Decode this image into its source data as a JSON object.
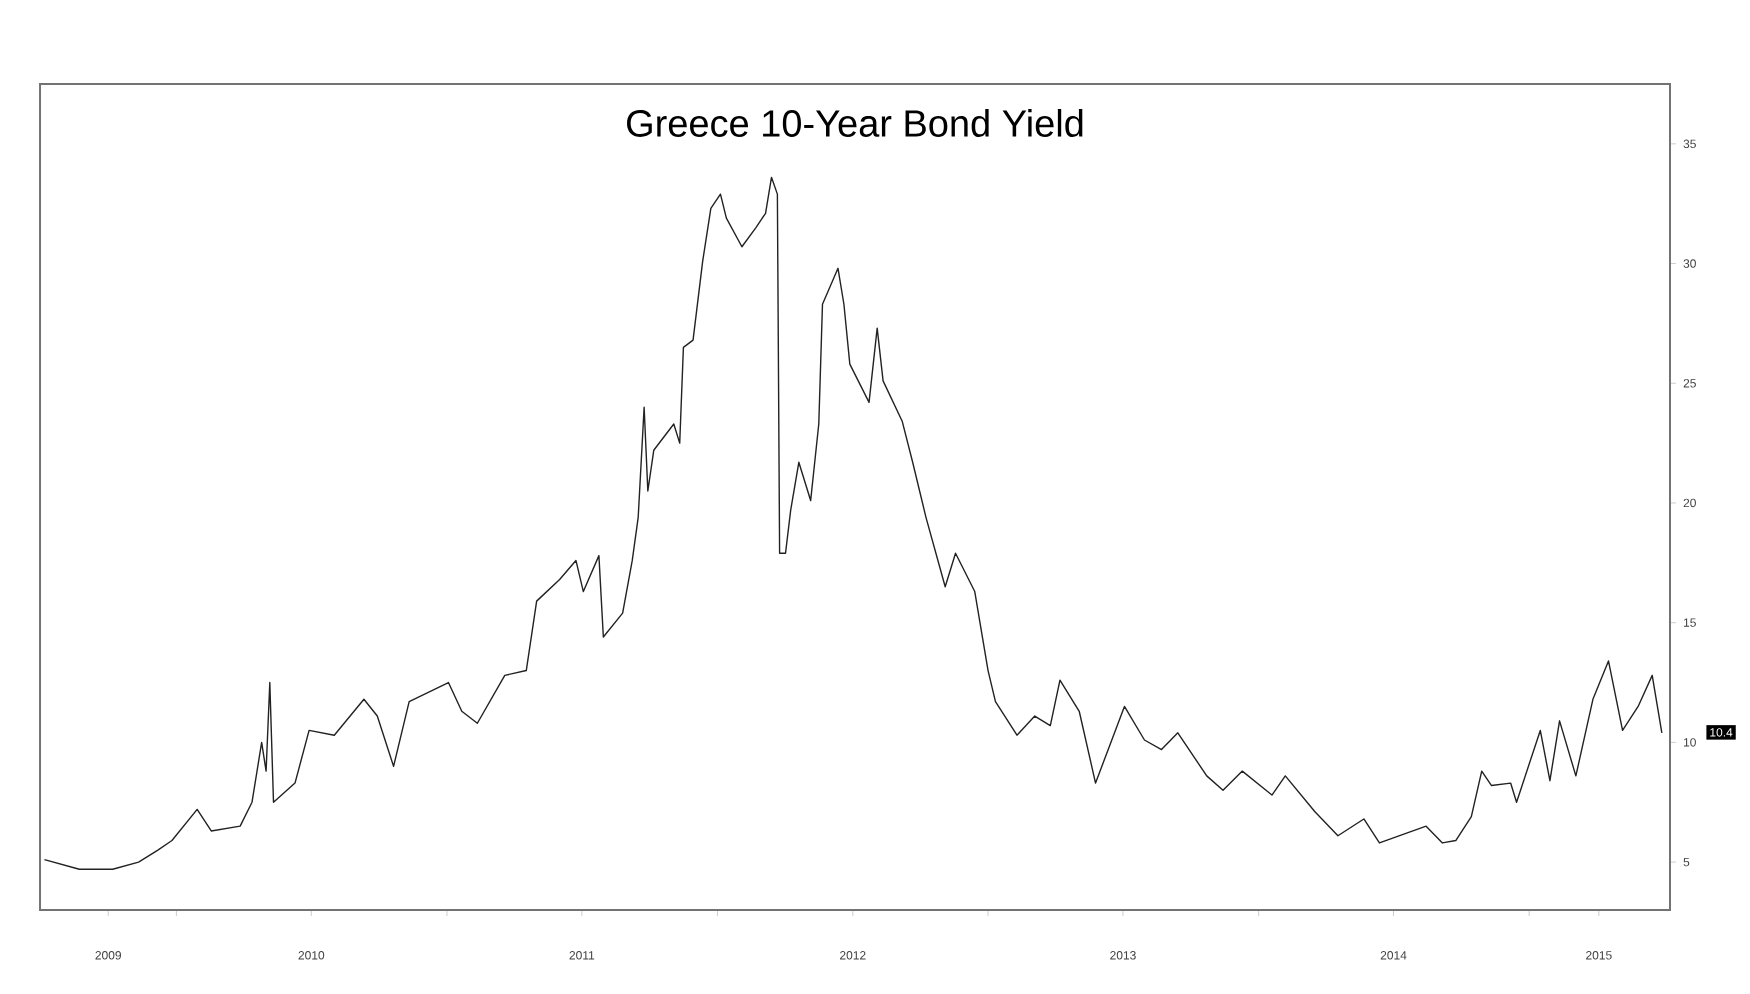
{
  "chart_data": {
    "type": "line",
    "title": "Greece 10-Year Bond Yield",
    "x": [
      "2009-07-07",
      "2009-08-23",
      "2009-10-07",
      "2009-11-11",
      "2009-12-07",
      "2009-12-26",
      "2010-01-29",
      "2010-02-17",
      "2010-03-28",
      "2010-04-13",
      "2010-04-26",
      "2010-05-02",
      "2010-05-07",
      "2010-05-12",
      "2010-06-10",
      "2010-06-29",
      "2010-08-02",
      "2010-09-11",
      "2010-09-29",
      "2010-10-21",
      "2010-11-11",
      "2011-01-03",
      "2011-01-21",
      "2011-02-11",
      "2011-03-20",
      "2011-04-18",
      "2011-05-02",
      "2011-06-02",
      "2011-06-24",
      "2011-07-04",
      "2011-07-25",
      "2011-07-31",
      "2011-08-26",
      "2011-09-08",
      "2011-09-16",
      "2011-09-24",
      "2011-09-29",
      "2011-10-07",
      "2011-11-03",
      "2011-11-11",
      "2011-11-16",
      "2011-11-29",
      "2011-12-12",
      "2011-12-23",
      "2012-01-05",
      "2012-01-13",
      "2012-02-03",
      "2012-02-22",
      "2012-03-06",
      "2012-03-14",
      "2012-03-22",
      "2012-03-25",
      "2012-04-02",
      "2012-04-09",
      "2012-04-20",
      "2012-05-06",
      "2012-05-17",
      "2012-05-22",
      "2012-06-12",
      "2012-06-20",
      "2012-06-28",
      "2012-07-24",
      "2012-08-04",
      "2012-08-12",
      "2012-09-07",
      "2012-09-21",
      "2012-10-09",
      "2012-11-04",
      "2012-11-18",
      "2012-12-14",
      "2013-01-01",
      "2013-01-11",
      "2013-02-09",
      "2013-03-05",
      "2013-03-26",
      "2013-04-08",
      "2013-05-04",
      "2013-05-26",
      "2013-07-04",
      "2013-07-31",
      "2013-08-23",
      "2013-09-14",
      "2013-10-23",
      "2013-11-14",
      "2013-12-10",
      "2014-01-19",
      "2014-02-06",
      "2014-03-18",
      "2014-04-18",
      "2014-05-23",
      "2014-06-13",
      "2014-08-15",
      "2014-09-06",
      "2014-09-24",
      "2014-10-15",
      "2014-10-29",
      "2014-11-11",
      "2014-12-07",
      "2014-12-15",
      "2015-01-16",
      "2015-01-29",
      "2015-02-11",
      "2015-03-05",
      "2015-03-28",
      "2015-04-18",
      "2015-05-07",
      "2015-05-28",
      "2015-06-16",
      "2015-06-29"
    ],
    "series": [
      {
        "color": "#222222",
        "values": [
          5.1,
          4.7,
          4.7,
          5.0,
          5.5,
          5.9,
          7.2,
          6.3,
          6.5,
          7.5,
          10.0,
          8.8,
          12.5,
          7.5,
          8.3,
          10.5,
          10.3,
          11.8,
          11.1,
          9.0,
          11.7,
          12.5,
          11.3,
          10.8,
          12.8,
          13.0,
          15.9,
          16.8,
          17.6,
          16.3,
          17.8,
          14.4,
          15.4,
          17.6,
          19.4,
          24.0,
          20.5,
          22.2,
          23.3,
          22.5,
          26.5,
          26.8,
          30.1,
          32.3,
          32.9,
          31.9,
          30.7,
          31.5,
          32.1,
          33.6,
          32.9,
          17.9,
          17.9,
          19.7,
          21.7,
          20.1,
          23.3,
          28.3,
          29.8,
          28.3,
          25.8,
          24.2,
          27.3,
          25.1,
          23.4,
          21.7,
          19.4,
          16.5,
          17.9,
          16.3,
          13.0,
          11.7,
          10.3,
          11.1,
          10.7,
          12.6,
          11.3,
          8.3,
          11.5,
          10.1,
          9.7,
          10.4,
          8.6,
          8.0,
          8.8,
          7.8,
          8.6,
          7.1,
          6.1,
          6.8,
          5.8,
          6.5,
          5.8,
          5.9,
          6.9,
          8.8,
          8.2,
          8.3,
          7.5,
          10.5,
          8.4,
          10.9,
          8.6,
          11.8,
          13.4,
          10.5,
          11.5,
          12.8,
          10.4
        ]
      }
    ],
    "xlim": [
      "2009-07-01",
      "2015-07-10"
    ],
    "xticks": [
      {
        "value": "2009-10-01",
        "label": "2009"
      },
      {
        "value": "2010-01-01",
        "label": null
      },
      {
        "value": "2010-07-02",
        "label": "2010"
      },
      {
        "value": "2011-01-01",
        "label": null
      },
      {
        "value": "2011-07-02",
        "label": "2011"
      },
      {
        "value": "2012-01-01",
        "label": null
      },
      {
        "value": "2012-07-02",
        "label": "2012"
      },
      {
        "value": "2013-01-01",
        "label": null
      },
      {
        "value": "2013-07-02",
        "label": "2013"
      },
      {
        "value": "2014-01-01",
        "label": null
      },
      {
        "value": "2014-07-02",
        "label": "2014"
      },
      {
        "value": "2015-01-01",
        "label": null
      },
      {
        "value": "2015-04-05",
        "label": "2015"
      }
    ],
    "ylim": [
      3,
      37.5
    ],
    "yticks": [
      5,
      10,
      15,
      20,
      25,
      30,
      35
    ],
    "annotations": [
      "10.4"
    ],
    "grid": false,
    "marker": "none",
    "line_style": "solid"
  }
}
